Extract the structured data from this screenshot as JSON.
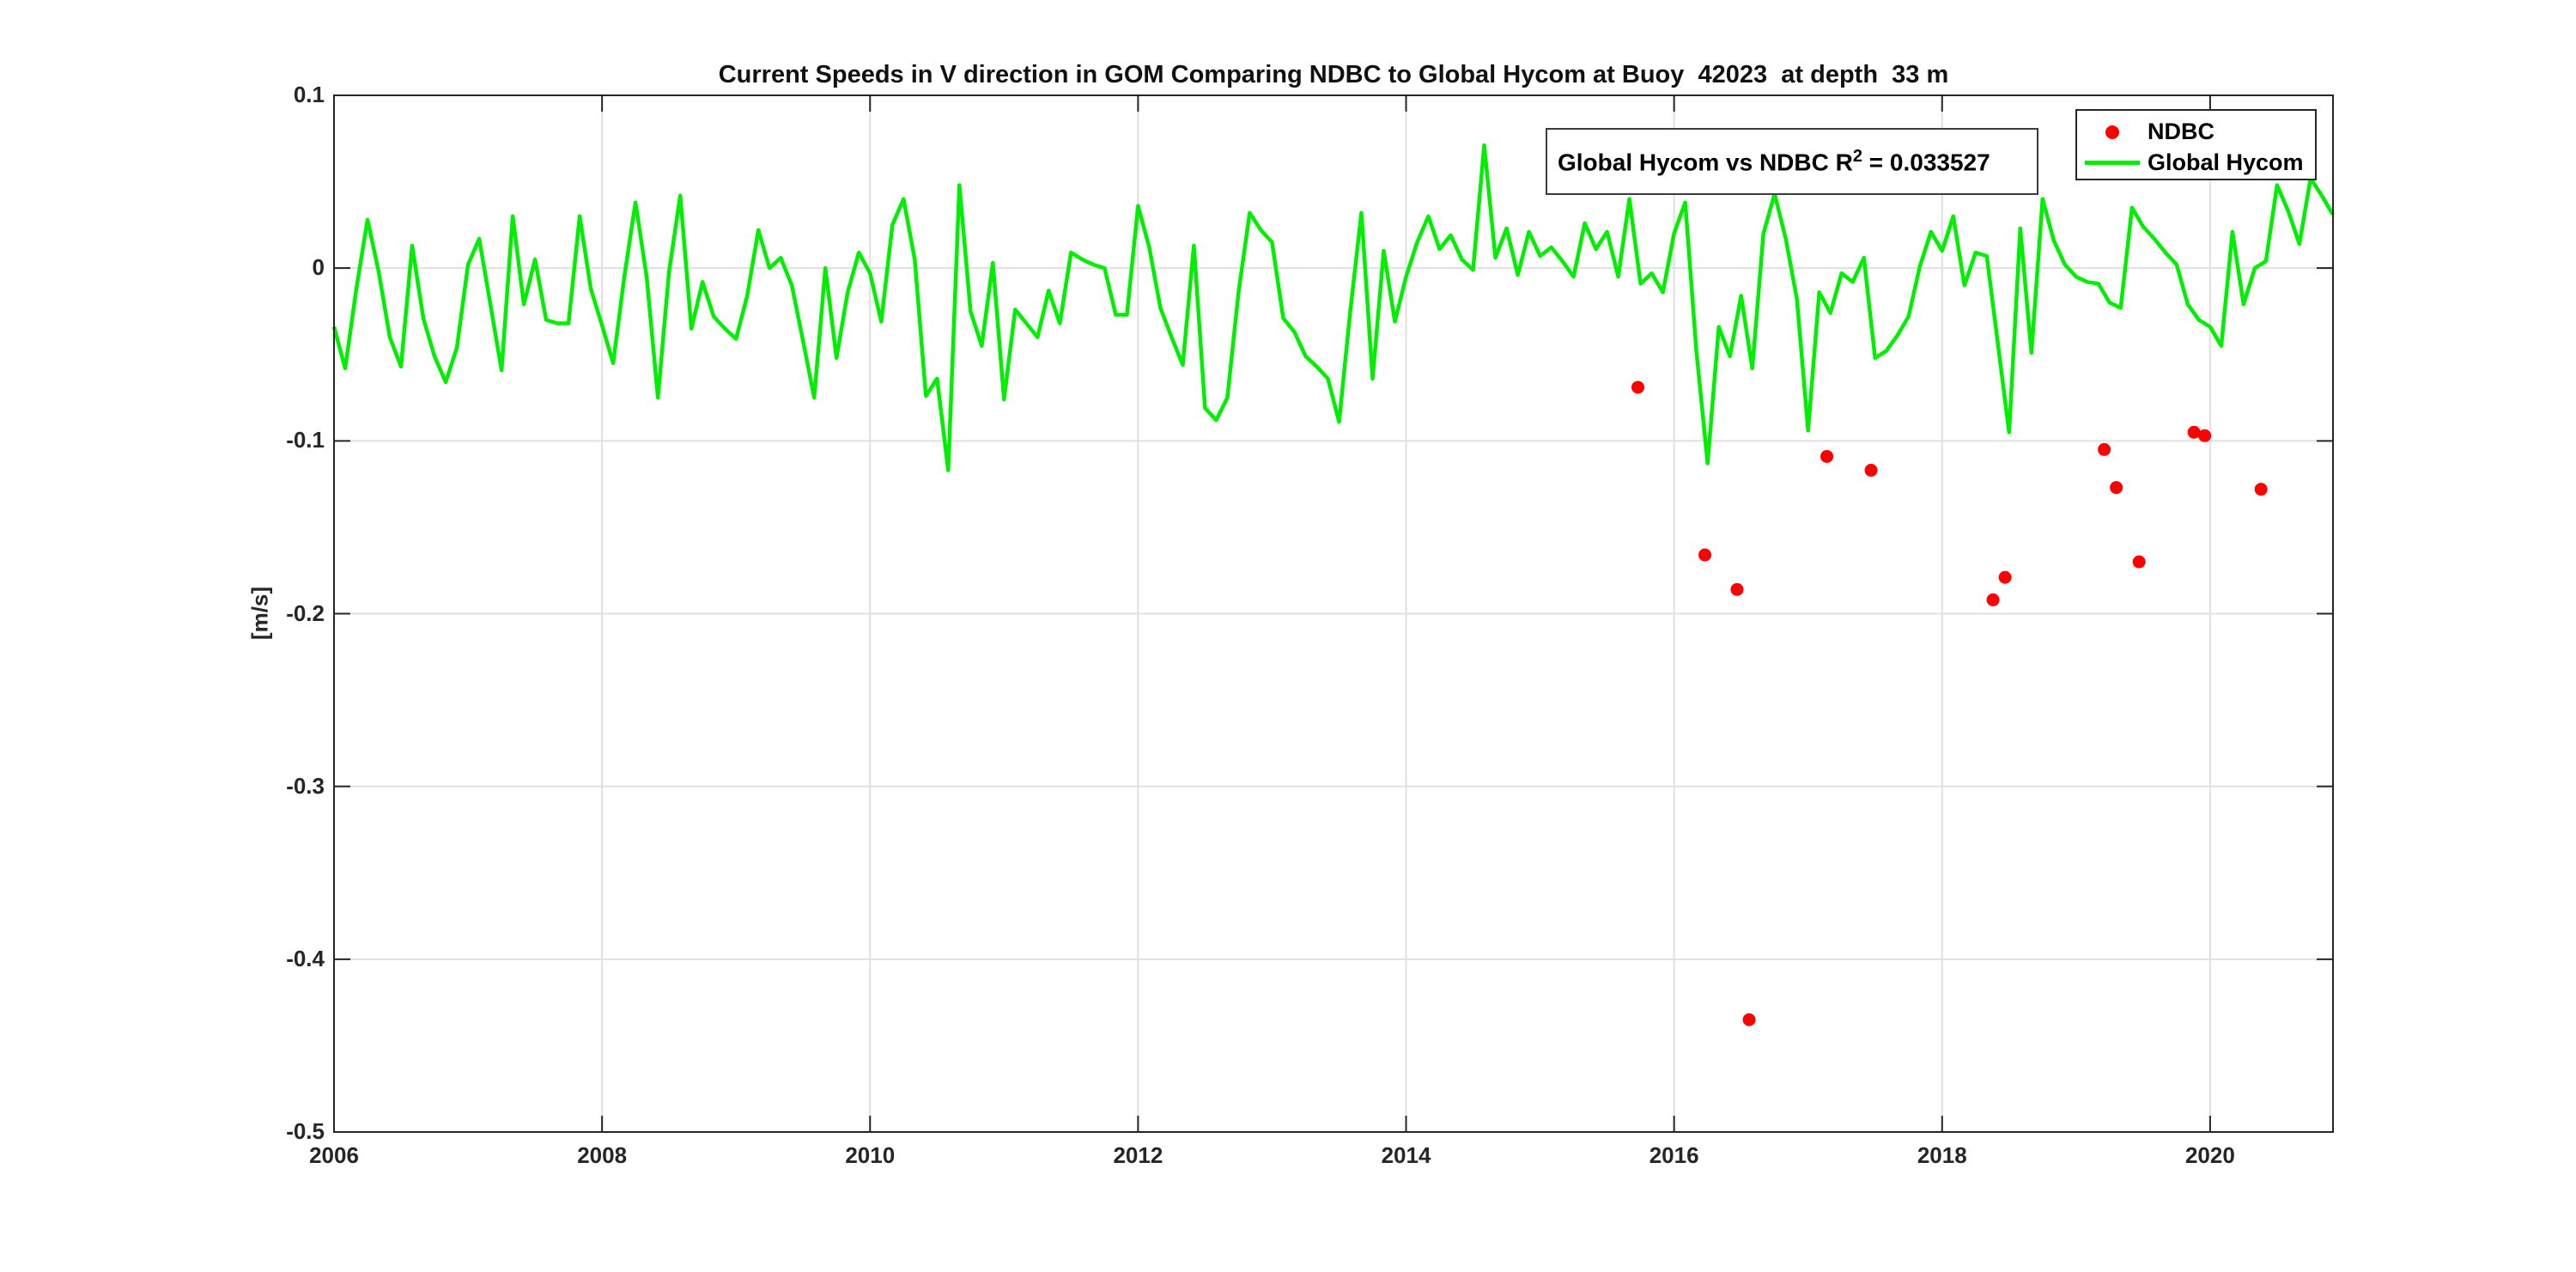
{
  "chart_data": {
    "type": "line+scatter",
    "title": "Current Speeds in V direction in GOM Comparing NDBC to Global Hycom at Buoy  42023  at depth  33 m",
    "ylabel": "[m/s]",
    "xlim": [
      2006,
      2020.917
    ],
    "ylim": [
      -0.5,
      0.1
    ],
    "xticks": [
      2006,
      2008,
      2010,
      2012,
      2014,
      2016,
      2018,
      2020
    ],
    "yticks": [
      0.1,
      0,
      -0.1,
      -0.2,
      -0.3,
      -0.4,
      -0.5
    ],
    "grid": true,
    "grid_color": "#e0e0e0",
    "axis_color": "#262626",
    "legend_position": "top-right-inside",
    "series": [
      {
        "name": "NDBC",
        "type": "scatter",
        "color": "#ff0000",
        "marker": "circle",
        "points": [
          [
            2015.73,
            -0.069
          ],
          [
            2016.23,
            -0.166
          ],
          [
            2016.47,
            -0.186
          ],
          [
            2016.56,
            -0.435
          ],
          [
            2017.14,
            -0.109
          ],
          [
            2017.47,
            -0.117
          ],
          [
            2018.38,
            -0.192
          ],
          [
            2018.47,
            -0.179
          ],
          [
            2019.21,
            -0.105
          ],
          [
            2019.3,
            -0.127
          ],
          [
            2019.47,
            -0.17
          ],
          [
            2019.88,
            -0.095
          ],
          [
            2019.96,
            -0.097
          ],
          [
            2020.38,
            -0.128
          ]
        ]
      },
      {
        "name": "Global Hycom",
        "type": "line",
        "color": "#00ef00",
        "x_start": 2006.0,
        "x_step": 0.08333,
        "values": [
          -0.034,
          -0.058,
          -0.012,
          0.028,
          -0.002,
          -0.04,
          -0.057,
          0.013,
          -0.029,
          -0.051,
          -0.066,
          -0.046,
          0.002,
          0.017,
          -0.021,
          -0.059,
          0.03,
          -0.021,
          0.005,
          -0.03,
          -0.032,
          -0.032,
          0.03,
          -0.012,
          -0.033,
          -0.055,
          -0.005,
          0.038,
          -0.005,
          -0.075,
          -0.002,
          0.042,
          -0.035,
          -0.008,
          -0.028,
          -0.035,
          -0.041,
          -0.016,
          0.022,
          0.0,
          0.006,
          -0.01,
          -0.042,
          -0.075,
          0.0,
          -0.052,
          -0.014,
          0.009,
          -0.003,
          -0.031,
          0.025,
          0.04,
          0.005,
          -0.074,
          -0.064,
          -0.117,
          0.048,
          -0.025,
          -0.045,
          0.003,
          -0.076,
          -0.024,
          -0.032,
          -0.04,
          -0.013,
          -0.032,
          0.009,
          0.005,
          0.002,
          0.0,
          -0.027,
          -0.027,
          0.036,
          0.012,
          -0.023,
          -0.04,
          -0.056,
          0.013,
          -0.081,
          -0.088,
          -0.075,
          -0.014,
          0.032,
          0.022,
          0.015,
          -0.029,
          -0.037,
          -0.051,
          -0.057,
          -0.064,
          -0.089,
          -0.025,
          0.032,
          -0.064,
          0.01,
          -0.031,
          -0.005,
          0.015,
          0.03,
          0.011,
          0.019,
          0.005,
          -0.001,
          0.071,
          0.006,
          0.023,
          -0.004,
          0.021,
          0.007,
          0.012,
          0.004,
          -0.005,
          0.026,
          0.011,
          0.021,
          -0.005,
          0.04,
          -0.009,
          -0.003,
          -0.014,
          0.02,
          0.038,
          -0.048,
          -0.113,
          -0.034,
          -0.051,
          -0.016,
          -0.058,
          0.02,
          0.043,
          0.017,
          -0.018,
          -0.094,
          -0.014,
          -0.026,
          -0.003,
          -0.008,
          0.006,
          -0.052,
          -0.048,
          -0.039,
          -0.028,
          0.001,
          0.021,
          0.01,
          0.03,
          -0.01,
          0.009,
          0.007,
          -0.044,
          -0.095,
          0.023,
          -0.049,
          0.04,
          0.016,
          0.002,
          -0.005,
          -0.008,
          -0.009,
          -0.02,
          -0.023,
          0.035,
          0.024,
          0.017,
          0.009,
          0.002,
          -0.021,
          -0.03,
          -0.034,
          -0.045,
          0.021,
          -0.021,
          0.0,
          0.004,
          0.048,
          0.033,
          0.014,
          0.052,
          0.042,
          0.031
        ]
      }
    ],
    "annotation": {
      "prefix": "Global Hycom vs NDBC R",
      "sup": "2",
      "suffix": " = 0.033527"
    }
  },
  "legend": {
    "item1": "NDBC",
    "item2": "Global Hycom"
  }
}
